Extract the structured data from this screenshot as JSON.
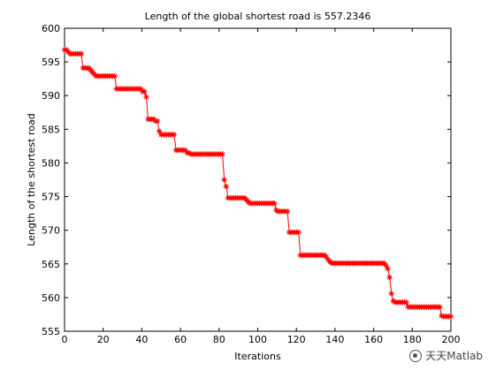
{
  "chart_data": {
    "type": "line",
    "title": "Length of the global shortest road is 557.2346",
    "xlabel": "Iterations",
    "ylabel": "Length of the shortest road",
    "xlim": [
      0,
      200
    ],
    "ylim": [
      555,
      600
    ],
    "xticks": [
      0,
      20,
      40,
      60,
      80,
      100,
      120,
      140,
      160,
      180,
      200
    ],
    "yticks": [
      555,
      560,
      565,
      570,
      575,
      580,
      585,
      590,
      595,
      600
    ],
    "grid": false,
    "legend": "none",
    "series": [
      {
        "color": "#ff0000",
        "marker": "*",
        "values": [
          596.8,
          596.8,
          596.5,
          596.2,
          596.2,
          596.2,
          596.2,
          596.2,
          596.2,
          596.2,
          594.1,
          594.1,
          594.1,
          594.1,
          593.8,
          593.5,
          593.2,
          592.9,
          592.9,
          592.9,
          592.9,
          592.9,
          592.9,
          592.9,
          592.9,
          592.9,
          592.9,
          592.9,
          591.0,
          591.0,
          591.0,
          591.0,
          591.0,
          591.0,
          591.0,
          591.0,
          591.0,
          591.0,
          591.0,
          591.0,
          591.0,
          591.0,
          590.6,
          590.6,
          589.8,
          586.5,
          586.5,
          586.5,
          586.5,
          586.2,
          586.2,
          584.7,
          584.2,
          584.2,
          584.2,
          584.2,
          584.2,
          584.2,
          584.2,
          584.2,
          581.9,
          581.9,
          581.9,
          581.9,
          581.9,
          581.9,
          581.5,
          581.5,
          581.3,
          581.3,
          581.3,
          581.3,
          581.3,
          581.3,
          581.3,
          581.3,
          581.3,
          581.3,
          581.3,
          581.3,
          581.3,
          581.3,
          581.3,
          581.3,
          581.3,
          581.3,
          577.5,
          576.5,
          574.8,
          574.8,
          574.8,
          574.8,
          574.8,
          574.8,
          574.8,
          574.8,
          574.8,
          574.8,
          574.5,
          574.2,
          574.0,
          574.0,
          574.0,
          574.0,
          574.0,
          574.0,
          574.0,
          574.0,
          574.0,
          574.0,
          574.0,
          574.0,
          574.0,
          574.0,
          573.0,
          572.8,
          572.8,
          572.8,
          572.8,
          572.8,
          572.8,
          569.7,
          569.7,
          569.7,
          569.7,
          569.7,
          569.7,
          566.3,
          566.3,
          566.3,
          566.3,
          566.3,
          566.3,
          566.3,
          566.3,
          566.3,
          566.3,
          566.3,
          566.3,
          566.3,
          566.3,
          566.0,
          565.6,
          565.3,
          565.1,
          565.1,
          565.1,
          565.1,
          565.1,
          565.1,
          565.1,
          565.1,
          565.1,
          565.1,
          565.1,
          565.1,
          565.1,
          565.1,
          565.1,
          565.1,
          565.1,
          565.1,
          565.1,
          565.1,
          565.1,
          565.1,
          565.1,
          565.1,
          565.1,
          565.1,
          565.1,
          565.1,
          565.1,
          564.8,
          564.3,
          563.0,
          560.6,
          559.5,
          559.3,
          559.3,
          559.3,
          559.3,
          559.3,
          559.3,
          559.3,
          558.6,
          558.6,
          558.6,
          558.6,
          558.6,
          558.6,
          558.6,
          558.6,
          558.6,
          558.6,
          558.6,
          558.6,
          558.6,
          558.6,
          558.6,
          558.6,
          558.6,
          558.6,
          557.3,
          557.2,
          557.2,
          557.2,
          557.2,
          557.2
        ]
      }
    ]
  },
  "watermark": {
    "icon": "wechat-icon",
    "text": "天天Matlab"
  }
}
